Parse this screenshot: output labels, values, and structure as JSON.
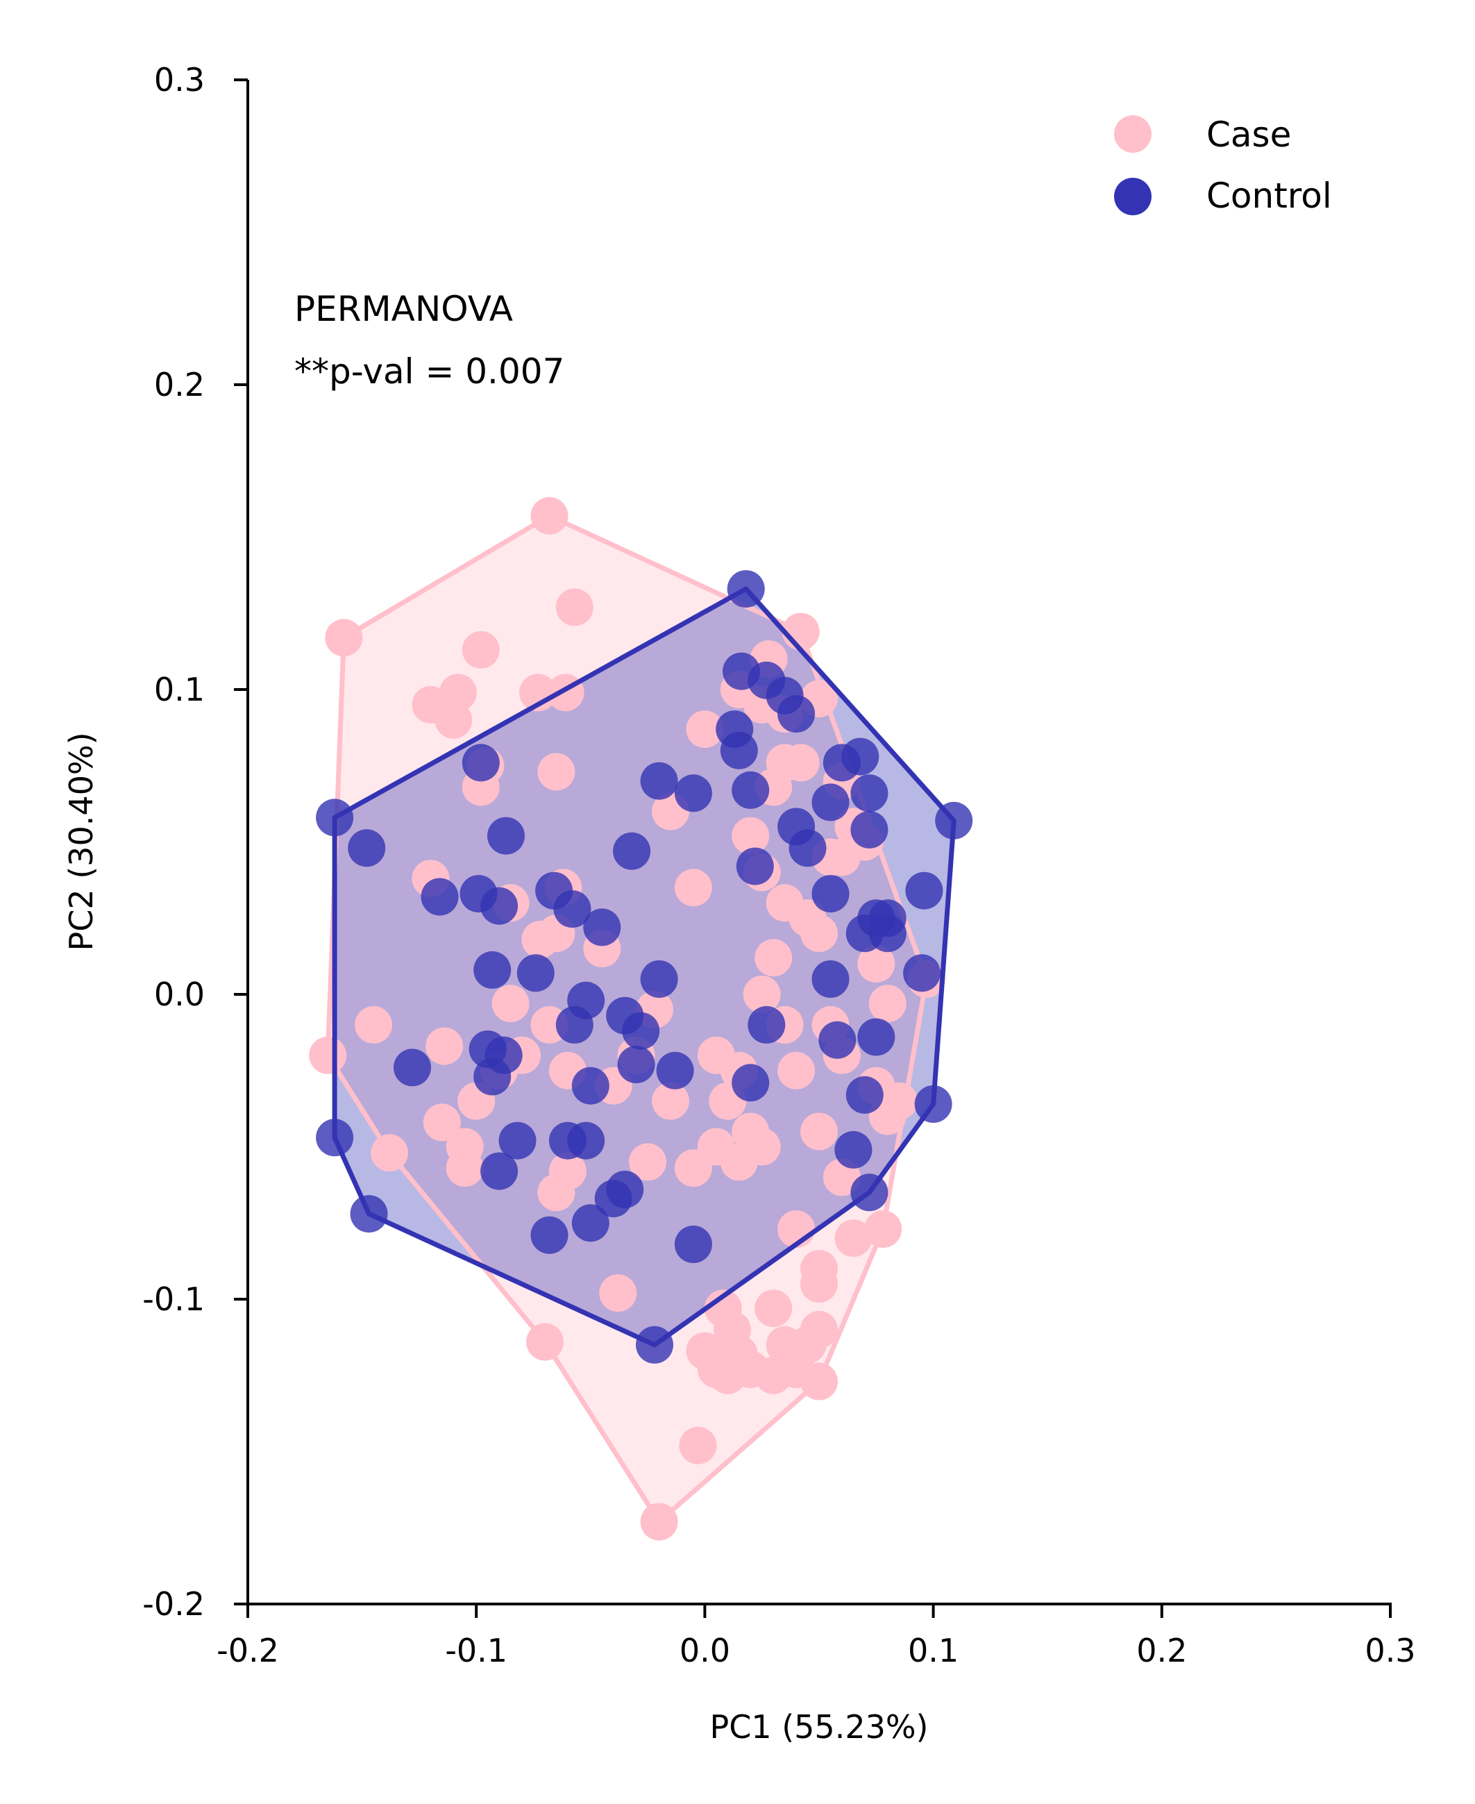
{
  "chart_data": {
    "type": "scatter",
    "xlabel": "PC1 (55.23%)",
    "ylabel": "PC2 (30.40%)",
    "xlim": [
      -0.2,
      0.3
    ],
    "ylim": [
      -0.2,
      0.3
    ],
    "xticks": [
      -0.2,
      -0.1,
      0.0,
      0.1,
      0.2,
      0.3
    ],
    "yticks": [
      -0.2,
      -0.1,
      0.0,
      0.1,
      0.2,
      0.3
    ],
    "xtick_labels": [
      "-0.2",
      "-0.1",
      "0.0",
      "0.1",
      "0.2",
      "0.3"
    ],
    "ytick_labels": [
      "-0.2",
      "-0.1",
      "0.0",
      "0.1",
      "0.2",
      "0.3"
    ],
    "grid": false,
    "legend_position": "top-right",
    "annotation": [
      "PERMANOVA",
      "**p-val = 0.007"
    ],
    "series": [
      {
        "name": "Case",
        "color": "#FFC0CB",
        "hull": [
          [
            -0.068,
            0.157
          ],
          [
            0.042,
            0.119
          ],
          [
            0.097,
            0.005
          ],
          [
            0.078,
            -0.077
          ],
          [
            0.05,
            -0.127
          ],
          [
            -0.02,
            -0.173
          ],
          [
            -0.07,
            -0.114
          ],
          [
            -0.138,
            -0.052
          ],
          [
            -0.165,
            -0.02
          ],
          [
            -0.158,
            0.117
          ]
        ],
        "points": [
          [
            -0.068,
            0.157
          ],
          [
            -0.057,
            0.127
          ],
          [
            -0.158,
            0.117
          ],
          [
            -0.098,
            0.113
          ],
          [
            -0.108,
            0.099
          ],
          [
            -0.12,
            0.095
          ],
          [
            -0.11,
            0.09
          ],
          [
            -0.073,
            0.099
          ],
          [
            -0.061,
            0.099
          ],
          [
            0.042,
            0.119
          ],
          [
            0.028,
            0.11
          ],
          [
            0.015,
            0.1
          ],
          [
            0.025,
            0.095
          ],
          [
            0.05,
            0.097
          ],
          [
            0.035,
            0.092
          ],
          [
            0.0,
            0.087
          ],
          [
            0.035,
            0.076
          ],
          [
            0.042,
            0.076
          ],
          [
            0.06,
            0.07
          ],
          [
            -0.096,
            0.075
          ],
          [
            -0.098,
            0.068
          ],
          [
            -0.065,
            0.073
          ],
          [
            -0.015,
            0.06
          ],
          [
            0.03,
            0.068
          ],
          [
            0.02,
            0.052
          ],
          [
            0.055,
            0.045
          ],
          [
            0.07,
            0.05
          ],
          [
            0.065,
            0.055
          ],
          [
            -0.12,
            0.038
          ],
          [
            -0.085,
            0.03
          ],
          [
            -0.062,
            0.035
          ],
          [
            -0.072,
            0.018
          ],
          [
            -0.065,
            0.02
          ],
          [
            -0.045,
            0.015
          ],
          [
            -0.005,
            0.035
          ],
          [
            0.025,
            0.04
          ],
          [
            0.035,
            0.03
          ],
          [
            0.045,
            0.025
          ],
          [
            0.06,
            0.045
          ],
          [
            0.075,
            0.01
          ],
          [
            0.05,
            0.02
          ],
          [
            0.03,
            0.012
          ],
          [
            0.08,
            -0.003
          ],
          [
            0.097,
            0.005
          ],
          [
            -0.145,
            -0.01
          ],
          [
            -0.114,
            -0.017
          ],
          [
            -0.085,
            -0.003
          ],
          [
            -0.068,
            -0.01
          ],
          [
            -0.09,
            -0.025
          ],
          [
            -0.1,
            -0.035
          ],
          [
            -0.08,
            -0.02
          ],
          [
            -0.06,
            -0.025
          ],
          [
            -0.04,
            -0.03
          ],
          [
            -0.022,
            -0.005
          ],
          [
            -0.03,
            -0.02
          ],
          [
            -0.015,
            -0.035
          ],
          [
            0.005,
            -0.02
          ],
          [
            0.015,
            -0.025
          ],
          [
            0.025,
            0.0
          ],
          [
            0.035,
            -0.01
          ],
          [
            0.04,
            -0.025
          ],
          [
            0.055,
            -0.01
          ],
          [
            0.06,
            -0.02
          ],
          [
            0.075,
            -0.03
          ],
          [
            0.085,
            -0.035
          ],
          [
            0.08,
            -0.04
          ],
          [
            0.05,
            -0.045
          ],
          [
            -0.165,
            -0.02
          ],
          [
            -0.138,
            -0.052
          ],
          [
            -0.115,
            -0.042
          ],
          [
            -0.105,
            -0.05
          ],
          [
            -0.105,
            -0.057
          ],
          [
            -0.065,
            -0.065
          ],
          [
            -0.06,
            -0.058
          ],
          [
            -0.025,
            -0.055
          ],
          [
            -0.005,
            -0.057
          ],
          [
            0.005,
            -0.05
          ],
          [
            0.015,
            -0.055
          ],
          [
            0.025,
            -0.05
          ],
          [
            0.01,
            -0.035
          ],
          [
            0.02,
            -0.045
          ],
          [
            0.06,
            -0.06
          ],
          [
            0.065,
            -0.08
          ],
          [
            0.078,
            -0.077
          ],
          [
            0.04,
            -0.077
          ],
          [
            0.05,
            -0.09
          ],
          [
            0.05,
            -0.095
          ],
          [
            -0.038,
            -0.098
          ],
          [
            -0.07,
            -0.114
          ],
          [
            0.008,
            -0.103
          ],
          [
            0.012,
            -0.11
          ],
          [
            0.03,
            -0.103
          ],
          [
            0.05,
            -0.11
          ],
          [
            0.045,
            -0.115
          ],
          [
            0.0,
            -0.117
          ],
          [
            0.005,
            -0.123
          ],
          [
            0.01,
            -0.125
          ],
          [
            0.015,
            -0.118
          ],
          [
            0.02,
            -0.123
          ],
          [
            0.035,
            -0.115
          ],
          [
            0.04,
            -0.123
          ],
          [
            0.03,
            -0.125
          ],
          [
            0.05,
            -0.127
          ],
          [
            -0.003,
            -0.148
          ],
          [
            -0.02,
            -0.173
          ]
        ]
      },
      {
        "name": "Control",
        "color": "#3333B3",
        "hull": [
          [
            0.018,
            0.133
          ],
          [
            0.109,
            0.057
          ],
          [
            0.1,
            -0.036
          ],
          [
            0.072,
            -0.065
          ],
          [
            -0.022,
            -0.115
          ],
          [
            -0.147,
            -0.072
          ],
          [
            -0.162,
            -0.047
          ],
          [
            -0.162,
            0.058
          ]
        ],
        "points": [
          [
            0.018,
            0.133
          ],
          [
            0.016,
            0.106
          ],
          [
            0.027,
            0.103
          ],
          [
            0.035,
            0.098
          ],
          [
            0.04,
            0.092
          ],
          [
            0.013,
            0.087
          ],
          [
            0.015,
            0.08
          ],
          [
            -0.098,
            0.076
          ],
          [
            -0.02,
            0.07
          ],
          [
            -0.005,
            0.066
          ],
          [
            0.06,
            0.076
          ],
          [
            0.068,
            0.078
          ],
          [
            0.072,
            0.066
          ],
          [
            0.055,
            0.063
          ],
          [
            0.02,
            0.067
          ],
          [
            -0.162,
            0.058
          ],
          [
            -0.148,
            0.048
          ],
          [
            -0.087,
            0.052
          ],
          [
            -0.032,
            0.047
          ],
          [
            0.04,
            0.055
          ],
          [
            0.045,
            0.048
          ],
          [
            0.022,
            0.042
          ],
          [
            0.072,
            0.054
          ],
          [
            0.109,
            0.057
          ],
          [
            -0.116,
            0.032
          ],
          [
            -0.099,
            0.033
          ],
          [
            -0.066,
            0.034
          ],
          [
            -0.058,
            0.028
          ],
          [
            -0.045,
            0.022
          ],
          [
            -0.09,
            0.029
          ],
          [
            0.055,
            0.033
          ],
          [
            0.075,
            0.025
          ],
          [
            0.08,
            0.025
          ],
          [
            0.07,
            0.02
          ],
          [
            0.08,
            0.02
          ],
          [
            0.096,
            0.034
          ],
          [
            0.095,
            0.007
          ],
          [
            -0.093,
            0.008
          ],
          [
            -0.074,
            0.007
          ],
          [
            -0.052,
            -0.002
          ],
          [
            -0.02,
            0.005
          ],
          [
            -0.028,
            -0.012
          ],
          [
            -0.035,
            -0.007
          ],
          [
            -0.057,
            -0.01
          ],
          [
            0.055,
            0.005
          ],
          [
            0.027,
            -0.01
          ],
          [
            0.058,
            -0.015
          ],
          [
            0.075,
            -0.014
          ],
          [
            -0.128,
            -0.024
          ],
          [
            -0.095,
            -0.018
          ],
          [
            -0.093,
            -0.027
          ],
          [
            -0.088,
            -0.02
          ],
          [
            -0.05,
            -0.03
          ],
          [
            -0.03,
            -0.023
          ],
          [
            -0.013,
            -0.025
          ],
          [
            0.02,
            -0.029
          ],
          [
            0.07,
            -0.033
          ],
          [
            0.1,
            -0.036
          ],
          [
            -0.082,
            -0.048
          ],
          [
            -0.06,
            -0.048
          ],
          [
            -0.052,
            -0.048
          ],
          [
            -0.162,
            -0.047
          ],
          [
            -0.09,
            -0.058
          ],
          [
            -0.035,
            -0.064
          ],
          [
            -0.04,
            -0.067
          ],
          [
            0.065,
            -0.051
          ],
          [
            0.072,
            -0.065
          ],
          [
            -0.147,
            -0.072
          ],
          [
            -0.05,
            -0.075
          ],
          [
            -0.068,
            -0.079
          ],
          [
            -0.005,
            -0.082
          ],
          [
            -0.022,
            -0.115
          ]
        ]
      }
    ]
  }
}
